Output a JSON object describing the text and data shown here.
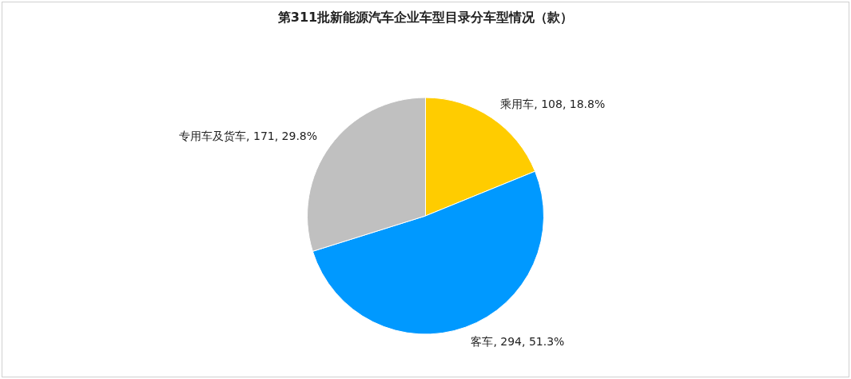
{
  "chart_data": {
    "type": "pie",
    "title": "第311批新能源汽车企业车型目录分车型情况（款）",
    "categories": [
      "乘用车",
      "客车",
      "专用车及货车"
    ],
    "values": [
      108,
      294,
      171
    ],
    "colors": [
      "#ffcc00",
      "#0099ff",
      "#c0c0c0"
    ],
    "value_labels": [
      "108, 18.8%",
      "294, 51.3%",
      "171, 29.8%"
    ]
  }
}
